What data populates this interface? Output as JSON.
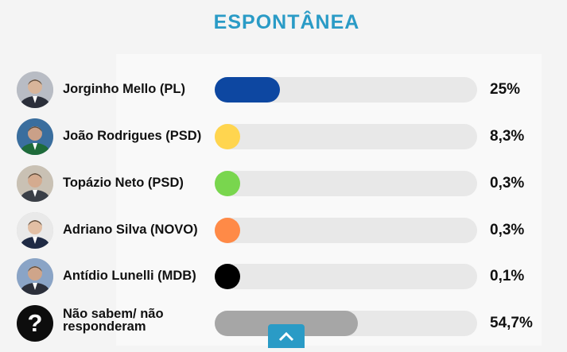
{
  "title": "ESPONTÂNEA",
  "chart_data": {
    "type": "bar",
    "orientation": "horizontal",
    "xlim": [
      0,
      100
    ],
    "rows": [
      {
        "label": "Jorginho Mello (PL)",
        "value": 25,
        "value_label": "25%",
        "color": "#0d47a1",
        "avatar": "person-photo"
      },
      {
        "label": "João Rodrigues (PSD)",
        "value": 8.3,
        "value_label": "8,3%",
        "color": "#ffd54f",
        "avatar": "person-photo"
      },
      {
        "label": "Topázio Neto (PSD)",
        "value": 0.3,
        "value_label": "0,3%",
        "color": "#79d64e",
        "avatar": "person-photo"
      },
      {
        "label": "Adriano Silva (NOVO)",
        "value": 0.3,
        "value_label": "0,3%",
        "color": "#ff8a47",
        "avatar": "person-photo"
      },
      {
        "label": "Antídio Lunelli (MDB)",
        "value": 0.1,
        "value_label": "0,1%",
        "color": "#000000",
        "avatar": "person-photo"
      },
      {
        "label": "Não sabem/ não responderam",
        "value": 54.7,
        "value_label": "54,7%",
        "color": "#a6a6a6",
        "avatar": "question-icon",
        "icon_text": "?"
      }
    ]
  }
}
